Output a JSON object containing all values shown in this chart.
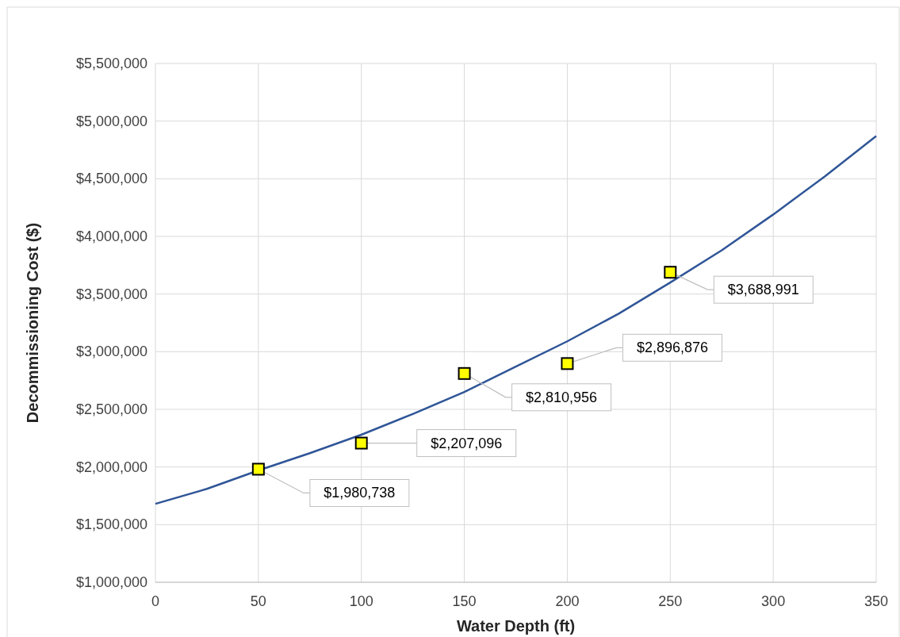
{
  "chart_data": {
    "type": "scatter",
    "xlabel": "Water Depth (ft)",
    "ylabel": "Decommissioning Cost ($)",
    "xlim": [
      0,
      350
    ],
    "xticks": [
      0,
      50,
      100,
      150,
      200,
      250,
      300,
      350
    ],
    "ylim": [
      1000000,
      5500000
    ],
    "yticks": [
      {
        "value": 1000000,
        "label": "$1,000,000"
      },
      {
        "value": 1500000,
        "label": "$1,500,000"
      },
      {
        "value": 2000000,
        "label": "$2,000,000"
      },
      {
        "value": 2500000,
        "label": "$2,500,000"
      },
      {
        "value": 3000000,
        "label": "$3,000,000"
      },
      {
        "value": 3500000,
        "label": "$3,500,000"
      },
      {
        "value": 4000000,
        "label": "$4,000,000"
      },
      {
        "value": 4500000,
        "label": "$4,500,000"
      },
      {
        "value": 5000000,
        "label": "$5,000,000"
      },
      {
        "value": 5500000,
        "label": "$5,500,000"
      }
    ],
    "grid": true,
    "series": [
      {
        "type": "line",
        "color": "#2f5597",
        "marker": "none",
        "line_style": "solid",
        "x": [
          0,
          25,
          50,
          75,
          100,
          125,
          150,
          175,
          200,
          225,
          250,
          275,
          300,
          325,
          350
        ],
        "values": [
          1680000,
          1810000,
          1970000,
          2120000,
          2280000,
          2460000,
          2650000,
          2870000,
          3090000,
          3330000,
          3600000,
          3880000,
          4190000,
          4520000,
          4870000
        ]
      },
      {
        "color": "#ffff00",
        "marker": "square",
        "x": [
          50,
          100,
          150,
          200,
          250
        ],
        "values": [
          1980738,
          2207096,
          2810956,
          2896876,
          3688991
        ],
        "value_labels": [
          "$1,980,738",
          "$2,207,096",
          "$2,810,956",
          "$2,896,876",
          "$3,688,991"
        ]
      }
    ]
  }
}
